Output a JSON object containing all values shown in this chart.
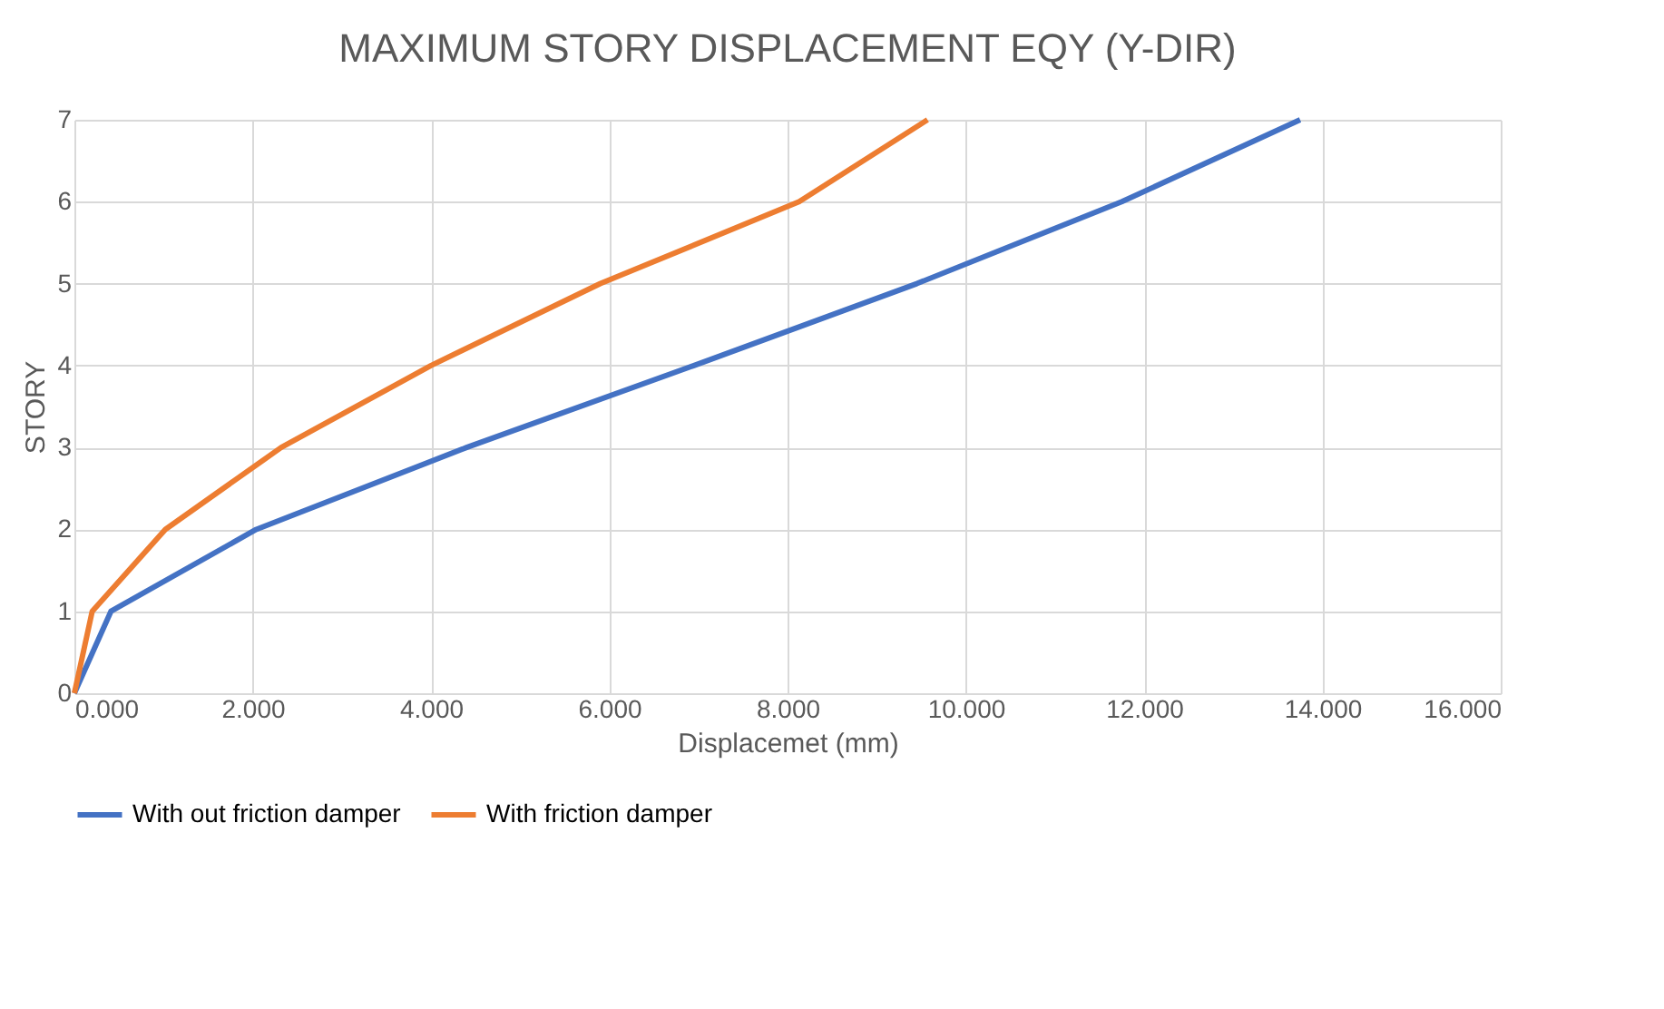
{
  "chart_data": {
    "type": "line",
    "title": "MAXIMUM STORY DISPLACEMENT EQY (Y-DIR)",
    "xlabel": "Displacemet (mm)",
    "ylabel": "STORY",
    "series": [
      {
        "name": "With out friction damper",
        "color": "#4472c4",
        "x": [
          0,
          0.41,
          2.04,
          4.4,
          6.95,
          9.45,
          11.75,
          13.75
        ],
        "values": [
          0,
          1,
          2,
          3,
          4,
          5,
          6,
          7
        ]
      },
      {
        "name": "With  friction damper",
        "color": "#ed7d31",
        "x": [
          0,
          0.2,
          1.02,
          2.32,
          4.0,
          5.9,
          8.13,
          9.57
        ],
        "values": [
          0,
          1,
          2,
          3,
          4,
          5,
          6,
          7
        ]
      }
    ],
    "xlim": [
      0,
      16
    ],
    "xticks": [
      {
        "value": 0,
        "label": "0.000"
      },
      {
        "value": 2,
        "label": "2.000"
      },
      {
        "value": 4,
        "label": "4.000"
      },
      {
        "value": 6,
        "label": "6.000"
      },
      {
        "value": 8,
        "label": "8.000"
      },
      {
        "value": 10,
        "label": "10.000"
      },
      {
        "value": 12,
        "label": "12.000"
      },
      {
        "value": 14,
        "label": "14.000"
      },
      {
        "value": 16,
        "label": "16.000"
      }
    ],
    "ylim": [
      0,
      7
    ],
    "yticks": [
      0,
      1,
      2,
      3,
      4,
      5,
      6,
      7
    ],
    "grid": true,
    "legend": "bottom",
    "marker": "none",
    "line_style": "solid"
  }
}
